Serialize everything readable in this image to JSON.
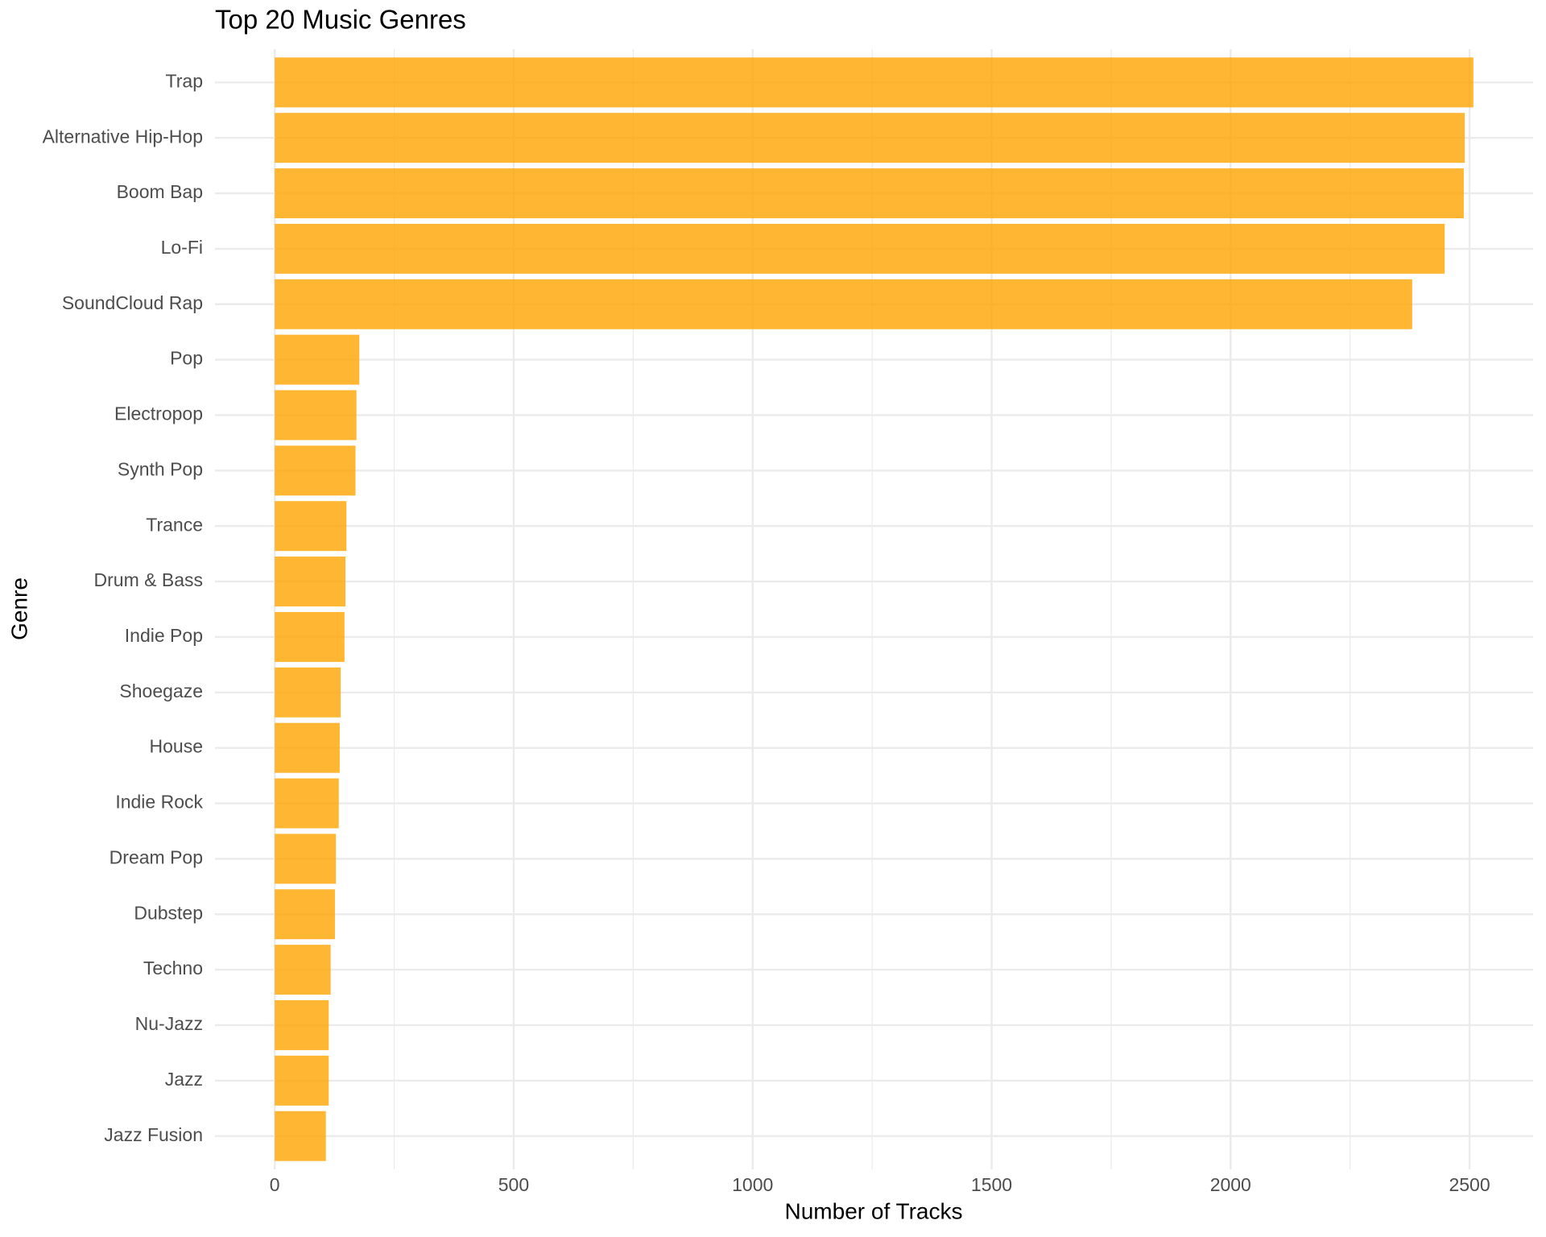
{
  "chart_data": {
    "type": "barh",
    "title": "Top 20 Music Genres",
    "x_label": "Number of Tracks",
    "y_label": "Genre",
    "categories": [
      "Trap",
      "Alternative Hip-Hop",
      "Boom Bap",
      "Lo-Fi",
      "SoundCloud Rap",
      "Pop",
      "Electropop",
      "Synth Pop",
      "Trance",
      "Drum & Bass",
      "Indie Pop",
      "Shoegaze",
      "House",
      "Indie Rock",
      "Dream Pop",
      "Dubstep",
      "Techno",
      "Nu-Jazz",
      "Jazz",
      "Jazz Fusion"
    ],
    "values": [
      2508,
      2490,
      2488,
      2448,
      2380,
      177,
      171,
      169,
      150,
      148,
      146,
      138,
      136,
      134,
      128,
      126,
      117,
      113,
      113,
      107
    ],
    "color": "#FFA500",
    "xlim": [
      -125,
      2633
    ],
    "xticks": [
      0,
      500,
      1000,
      1500,
      2000,
      2500
    ],
    "xminor": [
      250,
      750,
      1250,
      1750,
      2250
    ],
    "grid": true
  }
}
